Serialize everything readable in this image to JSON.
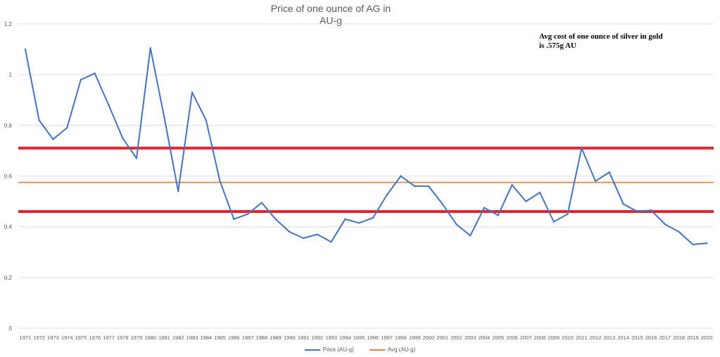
{
  "chart_data": {
    "type": "line",
    "title_line1": "Price of one ounce of AG in",
    "title_line2": "AU-g",
    "annotation_line1": "Avg cost of one ounce of silver in gold",
    "annotation_line2": "is .575g AU",
    "x": [
      "1971",
      "1972",
      "1973",
      "1974",
      "1975",
      "1976",
      "1977",
      "1978",
      "1979",
      "1980",
      "1981",
      "1982",
      "1983",
      "1984",
      "1985",
      "1986",
      "1987",
      "1988",
      "1989",
      "1990",
      "1991",
      "1992",
      "1993",
      "1994",
      "1995",
      "1996",
      "1997",
      "1998",
      "1999",
      "2000",
      "2001",
      "2002",
      "2003",
      "2004",
      "2005",
      "2006",
      "2007",
      "2008",
      "2009",
      "2010",
      "2011",
      "2012",
      "2013",
      "2014",
      "2015",
      "2016",
      "2017",
      "2018",
      "2019",
      "2020"
    ],
    "series": [
      {
        "name": "Price (AU-g)",
        "color": "#4472C4",
        "values": [
          1.1,
          0.82,
          0.745,
          0.79,
          0.98,
          1.005,
          0.88,
          0.75,
          0.67,
          1.105,
          0.83,
          0.54,
          0.93,
          0.82,
          0.58,
          0.43,
          0.45,
          0.495,
          0.43,
          0.38,
          0.355,
          0.37,
          0.34,
          0.43,
          0.415,
          0.435,
          0.525,
          0.6,
          0.56,
          0.56,
          0.49,
          0.41,
          0.365,
          0.475,
          0.445,
          0.565,
          0.5,
          0.535,
          0.42,
          0.45,
          0.71,
          0.58,
          0.615,
          0.49,
          0.46,
          0.465,
          0.41,
          0.38,
          0.33,
          0.335
        ]
      },
      {
        "name": "Avg (AU-g)",
        "color": "#ED7D31",
        "constant": 0.575
      }
    ],
    "reference_lines": [
      {
        "value": 0.71,
        "color": "#E8212B"
      },
      {
        "value": 0.46,
        "color": "#E8212B"
      }
    ],
    "y_ticks": [
      "0",
      "0.2",
      "0.4",
      "0.6",
      "0.8",
      "1",
      "1.2"
    ],
    "ylim": [
      0,
      1.2
    ],
    "grid": true,
    "legend": "bottom"
  }
}
